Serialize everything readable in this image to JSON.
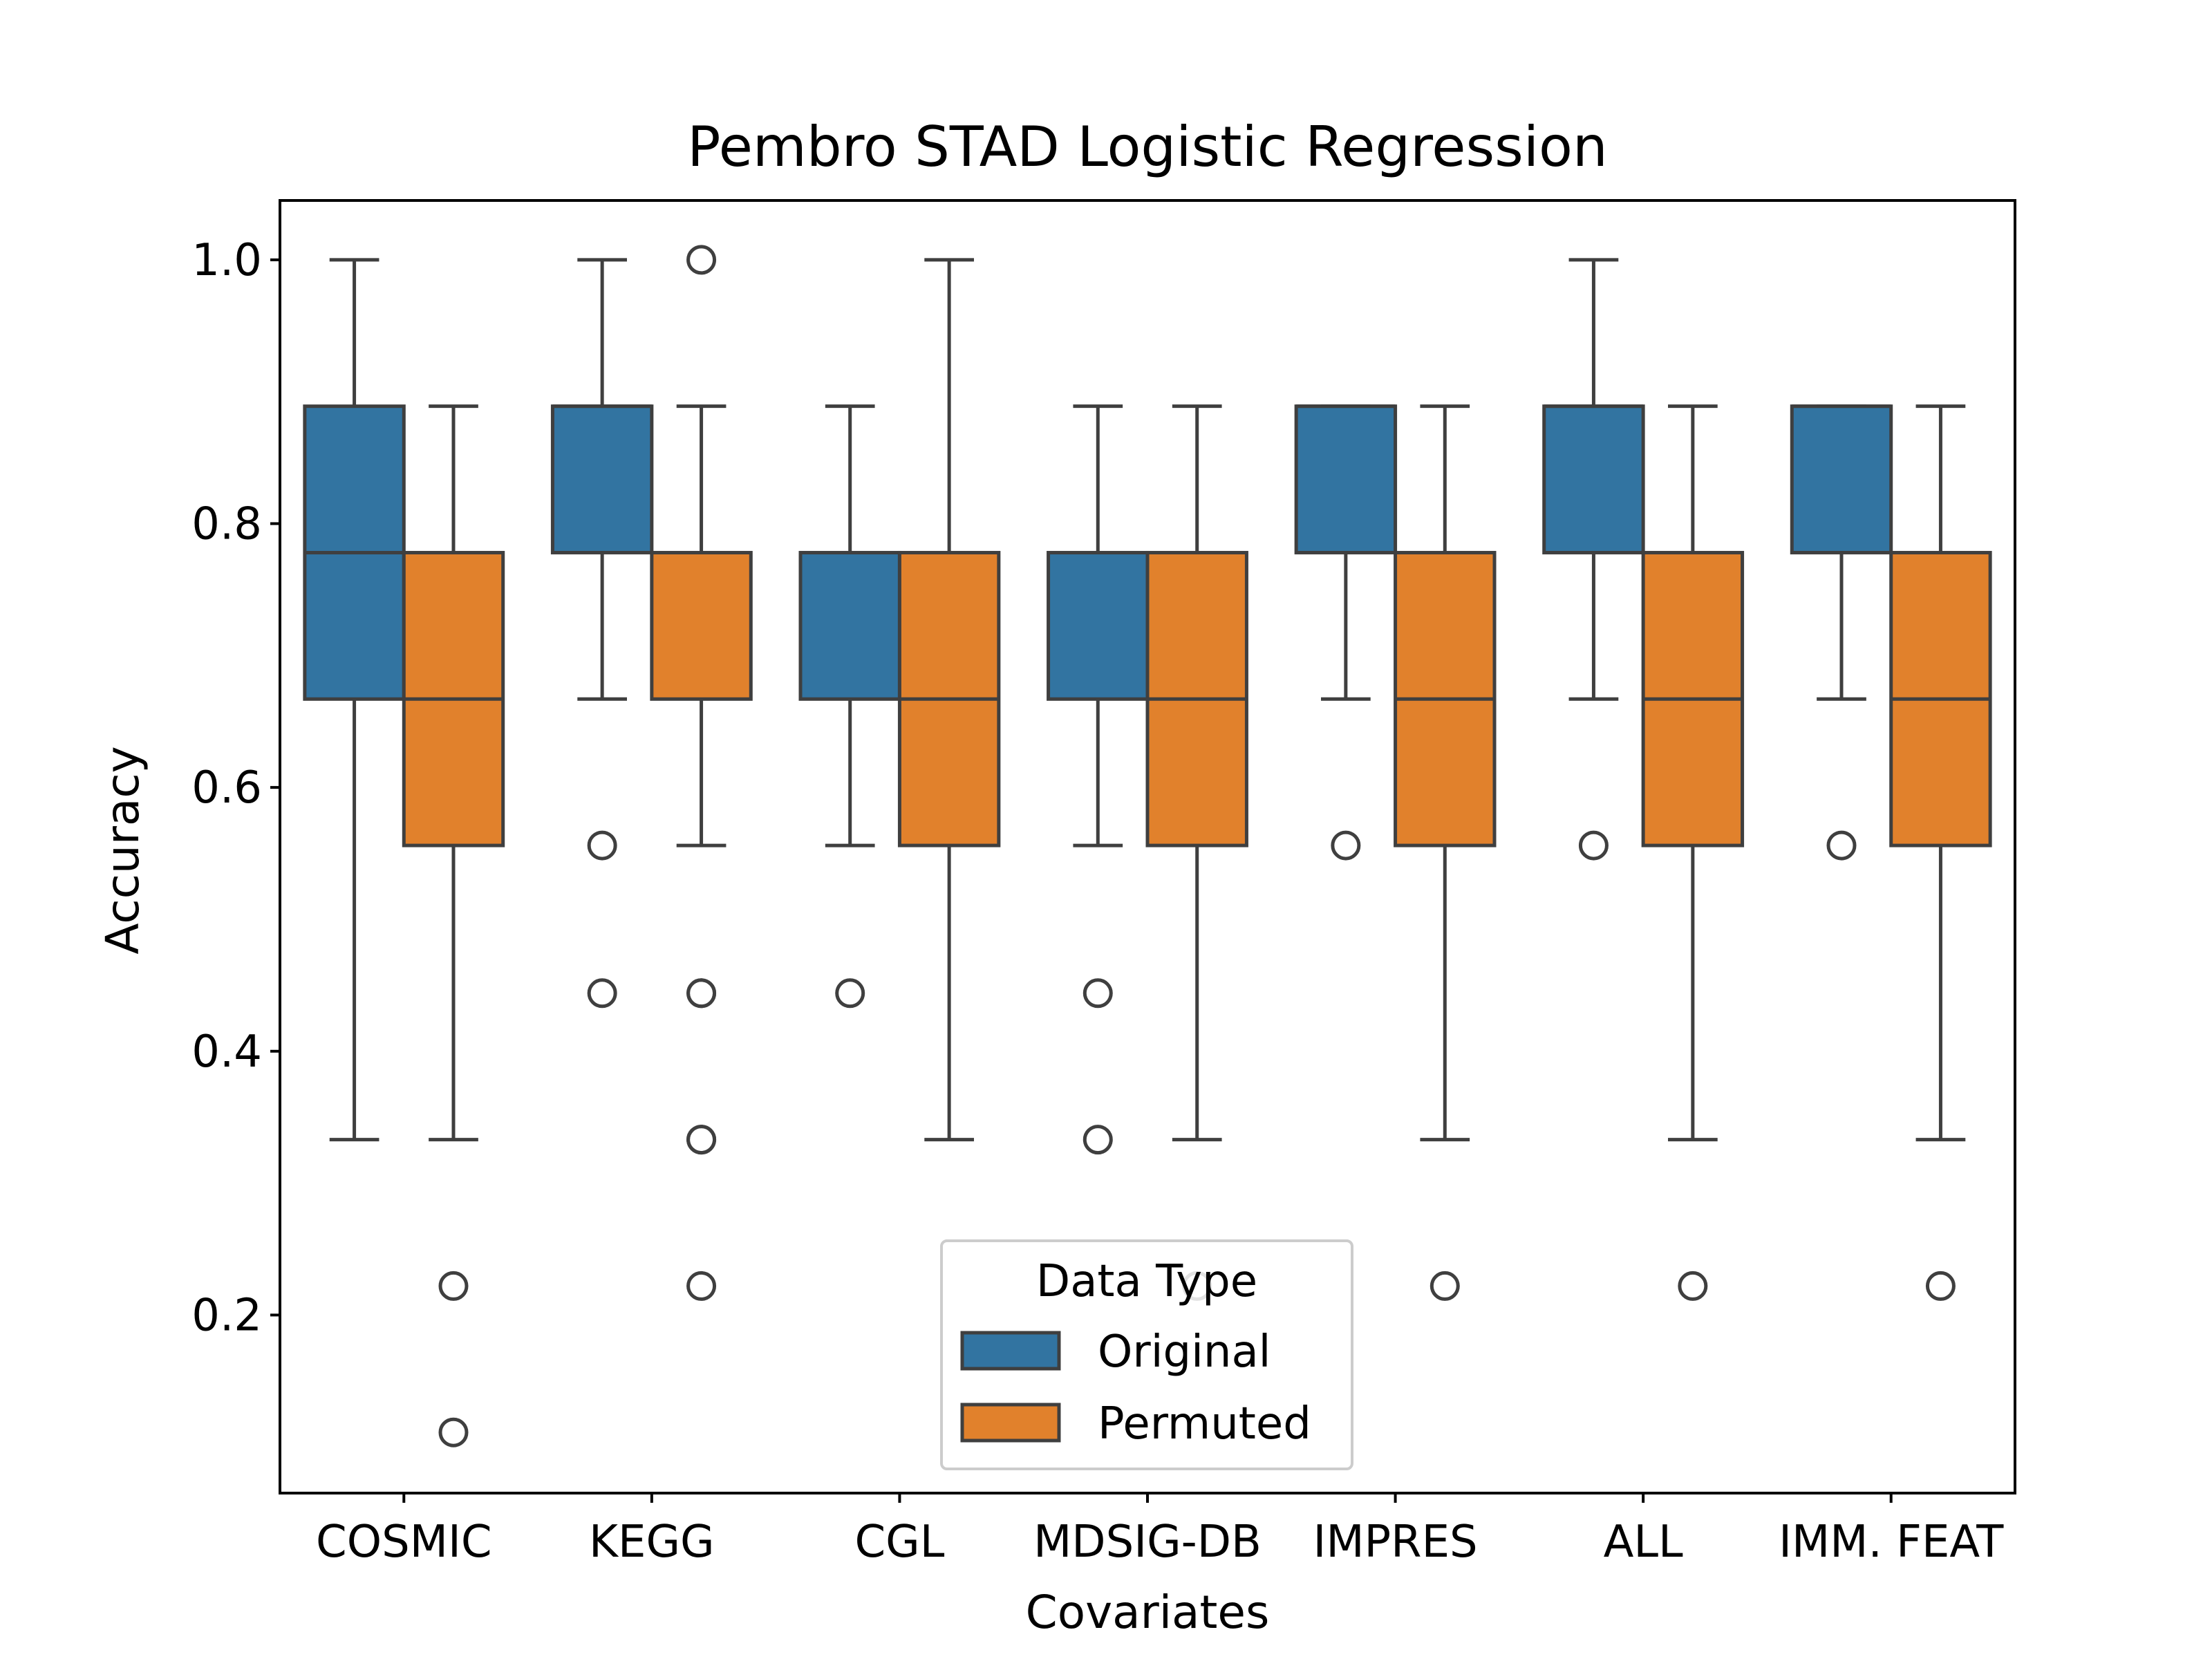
{
  "chart_data": {
    "type": "box",
    "title": "Pembro  STAD  Logistic Regression",
    "xlabel": "Covariates",
    "ylabel": "Accuracy",
    "ylim": [
      0.065,
      1.045
    ],
    "yticks": [
      "0.2",
      "0.4",
      "0.6",
      "0.8",
      "1.0"
    ],
    "categories": [
      "COSMIC",
      "KEGG",
      "CGL",
      "MDSIG-DB",
      "IMPRES",
      "ALL",
      "IMM. FEAT"
    ],
    "legend": {
      "title": "Data Type",
      "position": "bottom-center"
    },
    "series": [
      {
        "name": "Original",
        "color": "#3274a1",
        "boxes": [
          {
            "whisker_low": 0.333,
            "q1": 0.667,
            "median": 0.778,
            "q3": 0.889,
            "whisker_high": 1.0,
            "outliers": []
          },
          {
            "whisker_low": 0.667,
            "q1": 0.778,
            "median": 0.889,
            "q3": 0.889,
            "whisker_high": 1.0,
            "outliers": [
              0.556,
              0.444
            ]
          },
          {
            "whisker_low": 0.556,
            "q1": 0.667,
            "median": 0.778,
            "q3": 0.778,
            "whisker_high": 0.889,
            "outliers": [
              0.444
            ]
          },
          {
            "whisker_low": 0.556,
            "q1": 0.667,
            "median": 0.778,
            "q3": 0.778,
            "whisker_high": 0.889,
            "outliers": [
              0.444,
              0.333
            ]
          },
          {
            "whisker_low": 0.667,
            "q1": 0.778,
            "median": 0.889,
            "q3": 0.889,
            "whisker_high": 0.889,
            "outliers": [
              0.556
            ]
          },
          {
            "whisker_low": 0.667,
            "q1": 0.778,
            "median": 0.889,
            "q3": 0.889,
            "whisker_high": 1.0,
            "outliers": [
              0.556
            ]
          },
          {
            "whisker_low": 0.667,
            "q1": 0.778,
            "median": 0.889,
            "q3": 0.889,
            "whisker_high": 0.889,
            "outliers": [
              0.556
            ]
          }
        ]
      },
      {
        "name": "Permuted",
        "color": "#e1812c",
        "boxes": [
          {
            "whisker_low": 0.333,
            "q1": 0.556,
            "median": 0.667,
            "q3": 0.778,
            "whisker_high": 0.889,
            "outliers": [
              0.222,
              0.111
            ]
          },
          {
            "whisker_low": 0.556,
            "q1": 0.667,
            "median": 0.778,
            "q3": 0.778,
            "whisker_high": 0.889,
            "outliers": [
              1.0,
              0.444,
              0.444,
              0.333,
              0.333,
              0.222
            ]
          },
          {
            "whisker_low": 0.333,
            "q1": 0.556,
            "median": 0.667,
            "q3": 0.778,
            "whisker_high": 1.0,
            "outliers": []
          },
          {
            "whisker_low": 0.333,
            "q1": 0.556,
            "median": 0.667,
            "q3": 0.778,
            "whisker_high": 0.889,
            "outliers": [
              0.222
            ]
          },
          {
            "whisker_low": 0.333,
            "q1": 0.556,
            "median": 0.667,
            "q3": 0.778,
            "whisker_high": 0.889,
            "outliers": [
              0.222
            ]
          },
          {
            "whisker_low": 0.333,
            "q1": 0.556,
            "median": 0.667,
            "q3": 0.778,
            "whisker_high": 0.889,
            "outliers": [
              0.222
            ]
          },
          {
            "whisker_low": 0.333,
            "q1": 0.556,
            "median": 0.667,
            "q3": 0.778,
            "whisker_high": 0.889,
            "outliers": [
              0.222
            ]
          }
        ]
      }
    ],
    "line_color": "#3f3f3f"
  }
}
